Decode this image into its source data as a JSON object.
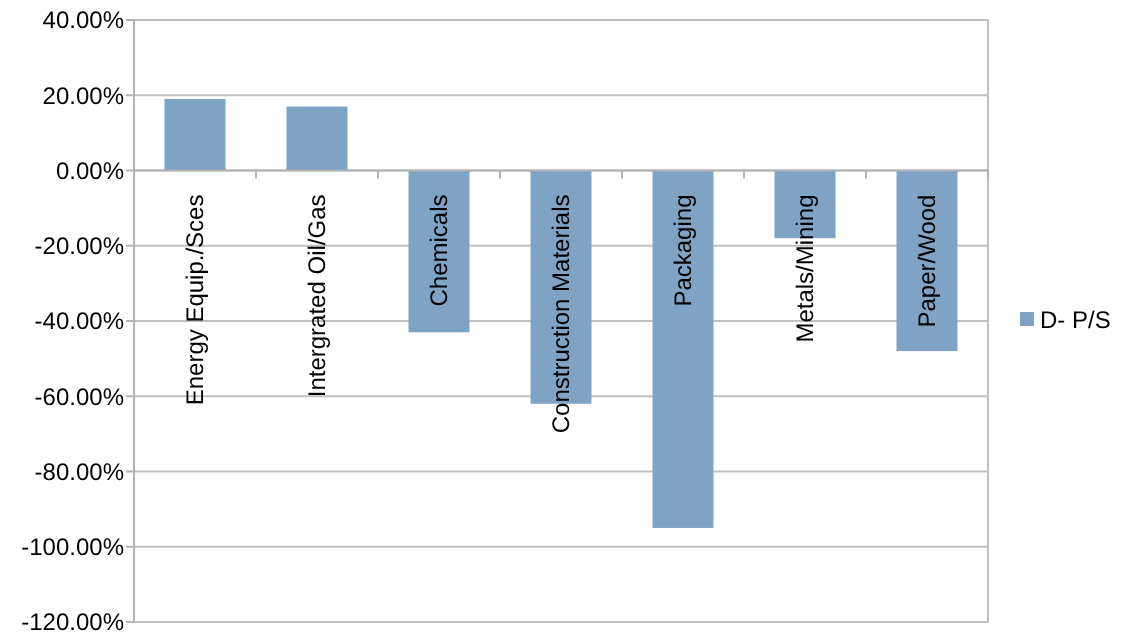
{
  "chart_data": {
    "type": "bar",
    "categories": [
      "Energy Equip./Sces",
      "Intergrated Oil/Gas",
      "Chemicals",
      "Construction Materials",
      "Packaging",
      "Metals/Mining",
      "Paper/Wood"
    ],
    "series": [
      {
        "name": "D- P/S",
        "color": "#7fa3c5",
        "values": [
          19,
          17,
          -43,
          -62,
          -95,
          -18,
          -48
        ]
      }
    ],
    "ylim": [
      -120,
      40
    ],
    "yticks": [
      {
        "value": -120,
        "label": "-120.00%"
      },
      {
        "value": -100,
        "label": "-100.00%"
      },
      {
        "value": -80,
        "label": "-80.00%"
      },
      {
        "value": -60,
        "label": "-60.00%"
      },
      {
        "value": -40,
        "label": "-40.00%"
      },
      {
        "value": -20,
        "label": "-20.00%"
      },
      {
        "value": 0,
        "label": "0.00%"
      },
      {
        "value": 20,
        "label": "20.00%"
      },
      {
        "value": 40,
        "label": "40.00%"
      }
    ],
    "grid": "y",
    "legend": "right"
  }
}
